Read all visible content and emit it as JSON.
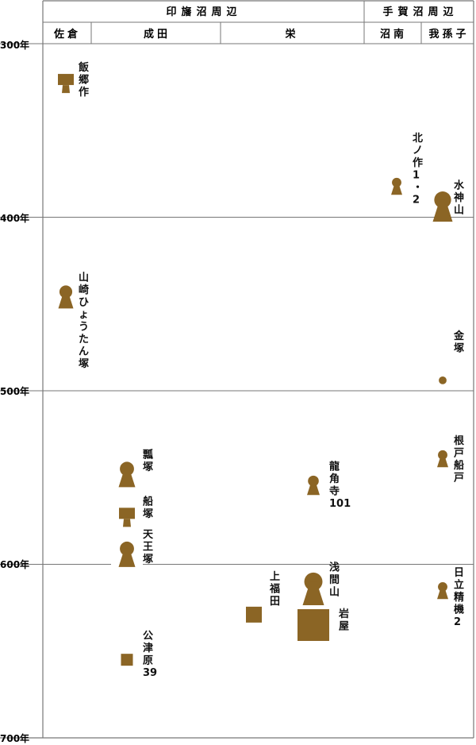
{
  "chart_data": {
    "type": "timeline",
    "y_axis": {
      "ticks": [
        "300年",
        "400年",
        "500年",
        "600年",
        "700年"
      ],
      "range": [
        300,
        700
      ]
    },
    "regions": [
      {
        "label": "印旛沼周辺",
        "areas": [
          "佐倉",
          "成田",
          "栄"
        ]
      },
      {
        "label": "手賀沼周辺",
        "areas": [
          "沼南",
          "我孫子"
        ]
      }
    ],
    "tombs": [
      {
        "name": "飯郷作",
        "area": "佐倉",
        "year": 322,
        "shape": "square-front",
        "size": 1
      },
      {
        "name": "北ノ作1・2",
        "area": "沼南",
        "year": 380,
        "shape": "keyhole",
        "size": 0.7
      },
      {
        "name": "山崎ひょうたん塚",
        "area": "佐倉",
        "year": 443,
        "shape": "keyhole",
        "size": 0.95
      },
      {
        "name": "水神山",
        "area": "我孫子",
        "year": 390,
        "shape": "keyhole",
        "size": 1.25
      },
      {
        "name": "金塚",
        "area": "我孫子",
        "year": 494,
        "shape": "round",
        "size": 0.7
      },
      {
        "name": "根戸船戸",
        "area": "我孫子",
        "year": 537,
        "shape": "keyhole",
        "size": 0.7
      },
      {
        "name": "瓢塚",
        "area": "成田",
        "year": 545,
        "shape": "keyhole",
        "size": 1.05
      },
      {
        "name": "龍角寺101",
        "area": "栄",
        "year": 552,
        "shape": "keyhole",
        "size": 0.8
      },
      {
        "name": "船塚",
        "area": "成田",
        "year": 572,
        "shape": "square-front",
        "size": 1
      },
      {
        "name": "天王塚",
        "area": "成田",
        "year": 591,
        "shape": "keyhole",
        "size": 1.05
      },
      {
        "name": "浅間山",
        "area": "栄",
        "year": 610,
        "shape": "keyhole",
        "size": 1.35
      },
      {
        "name": "日立精機2",
        "area": "我孫子",
        "year": 613,
        "shape": "keyhole",
        "size": 0.7
      },
      {
        "name": "上福田",
        "area": "栄",
        "year": 629,
        "shape": "square",
        "size": 1
      },
      {
        "name": "岩屋",
        "area": "栄",
        "year": 635,
        "shape": "square",
        "size": 2
      },
      {
        "name": "公津原39",
        "area": "成田",
        "year": 655,
        "shape": "square",
        "size": 0.75
      }
    ],
    "colors": {
      "mound": "#8b6525",
      "grid": "#777777",
      "border": "#555555"
    }
  }
}
